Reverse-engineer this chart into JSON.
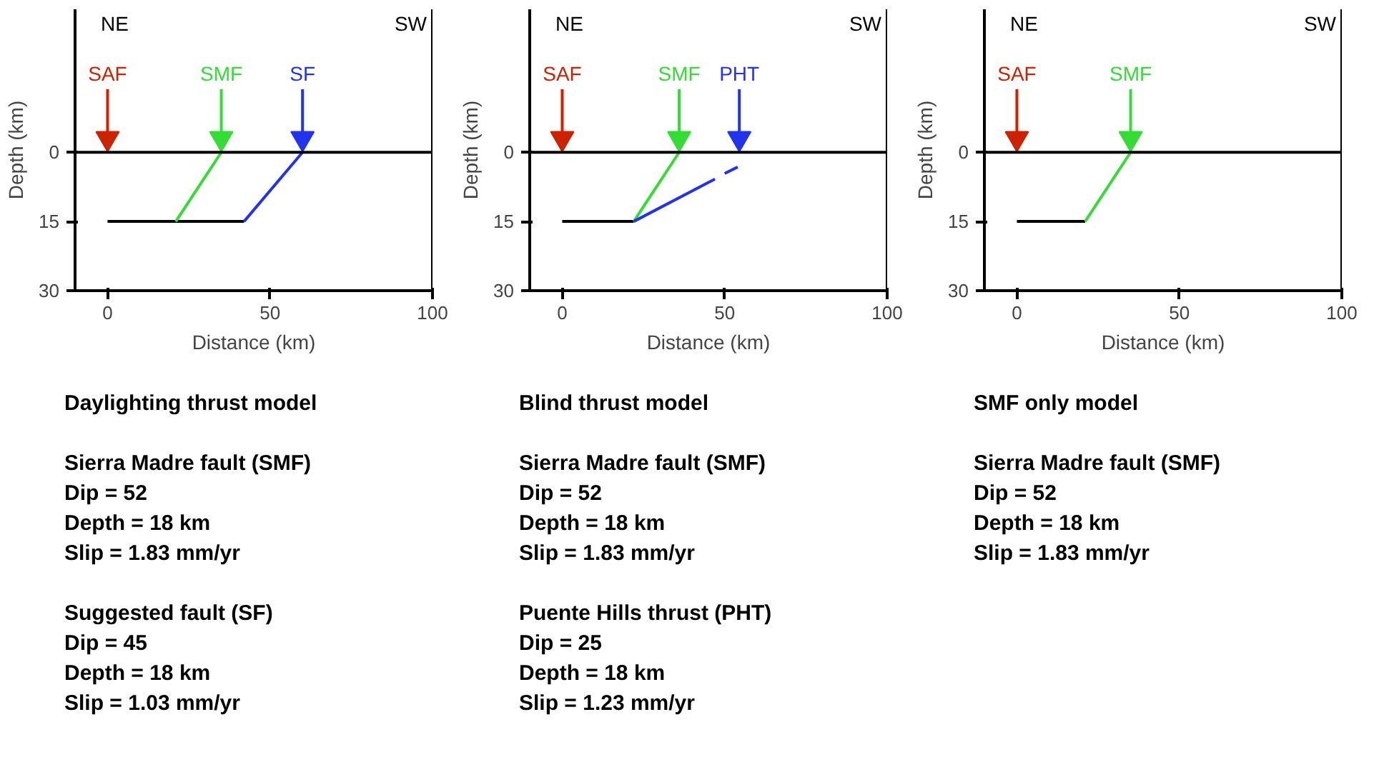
{
  "chart_data": [
    {
      "type": "line",
      "title": "Daylighting thrust model",
      "xlabel": "Distance (km)",
      "ylabel": "Depth (km)",
      "xlim": [
        -10,
        100
      ],
      "ylim": [
        30,
        -31
      ],
      "xticks": [
        0,
        50,
        100
      ],
      "yticks": [
        0,
        15,
        30
      ],
      "grid": false,
      "series": [
        {
          "color": "#000000",
          "x": [
            0,
            42
          ],
          "values": [
            15,
            15
          ]
        },
        {
          "color": "#33dd33",
          "x": [
            21,
            35
          ],
          "values": [
            15,
            0
          ]
        },
        {
          "color": "#2233ee",
          "x": [
            42,
            60
          ],
          "values": [
            15,
            0
          ]
        },
        {
          "type": "scatter",
          "marker": "triangle",
          "name": "SAF",
          "color": "#cc2200",
          "x": [
            0
          ],
          "values": [
            -3
          ]
        },
        {
          "type": "scatter",
          "marker": "triangle",
          "name": "SMF",
          "color": "#33dd33",
          "x": [
            35
          ],
          "values": [
            -3
          ]
        },
        {
          "type": "scatter",
          "marker": "triangle",
          "name": "SF",
          "color": "#2233ee",
          "x": [
            60
          ],
          "values": [
            -3
          ]
        }
      ],
      "ref_lines": [
        {
          "axis": "y",
          "value": 0,
          "color": "#000000"
        },
        {
          "axis": "x",
          "value": 100,
          "color": "#000000"
        }
      ],
      "annotations": [
        "NE",
        "SW",
        "Sierra Madre fault (SMF)\nDip = 52\nDepth = 18 km\nSlip = 1.83 mm/yr",
        "Suggested fault (SF)\nDip = 45\nDepth = 18 km\nSlip = 1.03 mm/yr"
      ]
    },
    {
      "type": "line",
      "title": "Blind thrust model",
      "xlabel": "Distance (km)",
      "ylabel": "Depth (km)",
      "xlim": [
        -10,
        100
      ],
      "ylim": [
        30,
        -31
      ],
      "xticks": [
        0,
        50,
        100
      ],
      "yticks": [
        0,
        15,
        30
      ],
      "grid": false,
      "series": [
        {
          "color": "#000000",
          "x": [
            0,
            22
          ],
          "values": [
            15,
            15
          ]
        },
        {
          "color": "#33dd33",
          "x": [
            22,
            36
          ],
          "values": [
            15,
            0
          ]
        },
        {
          "color": "#2233ee",
          "x": [
            22,
            47,
            48.5,
            50,
            54
          ],
          "values": [
            15,
            5.8,
            null,
            4.6,
            3.2
          ]
        },
        {
          "type": "scatter",
          "marker": "triangle",
          "name": "SAF",
          "color": "#cc2200",
          "x": [
            0
          ],
          "values": [
            -3
          ]
        },
        {
          "type": "scatter",
          "marker": "triangle",
          "name": "SMF",
          "color": "#33dd33",
          "x": [
            36
          ],
          "values": [
            -3
          ]
        },
        {
          "type": "scatter",
          "marker": "triangle",
          "name": "PHT",
          "color": "#2233ee",
          "x": [
            54.5
          ],
          "values": [
            -3
          ]
        }
      ],
      "ref_lines": [
        {
          "axis": "y",
          "value": 0,
          "color": "#000000"
        },
        {
          "axis": "x",
          "value": 100,
          "color": "#000000"
        }
      ],
      "annotations": [
        "NE",
        "SW",
        "Sierra Madre fault (SMF)\nDip = 52\nDepth = 18 km\nSlip = 1.83 mm/yr",
        "Puente Hills thrust (PHT)\nDip = 25\nDepth = 18 km\nSlip = 1.23 mm/yr"
      ]
    },
    {
      "type": "line",
      "title": "SMF only model",
      "xlabel": "Distance (km)",
      "ylabel": "Depth (km)",
      "xlim": [
        -10,
        100
      ],
      "ylim": [
        30,
        -31
      ],
      "xticks": [
        0,
        50,
        100
      ],
      "yticks": [
        0,
        15,
        30
      ],
      "grid": false,
      "series": [
        {
          "color": "#000000",
          "x": [
            0,
            21
          ],
          "values": [
            15,
            15
          ]
        },
        {
          "color": "#33dd33",
          "x": [
            21,
            35
          ],
          "values": [
            15,
            0
          ]
        },
        {
          "type": "scatter",
          "marker": "triangle",
          "name": "SAF",
          "color": "#cc2200",
          "x": [
            0
          ],
          "values": [
            -3
          ]
        },
        {
          "type": "scatter",
          "marker": "triangle",
          "name": "SMF",
          "color": "#33dd33",
          "x": [
            35
          ],
          "values": [
            -3
          ]
        }
      ],
      "ref_lines": [
        {
          "axis": "y",
          "value": 0,
          "color": "#000000"
        },
        {
          "axis": "x",
          "value": 100,
          "color": "#000000"
        }
      ],
      "annotations": [
        "NE",
        "SW",
        "Sierra Madre fault (SMF)\nDip = 52\nDepth = 18 km\nSlip = 1.83 mm/yr"
      ]
    }
  ]
}
